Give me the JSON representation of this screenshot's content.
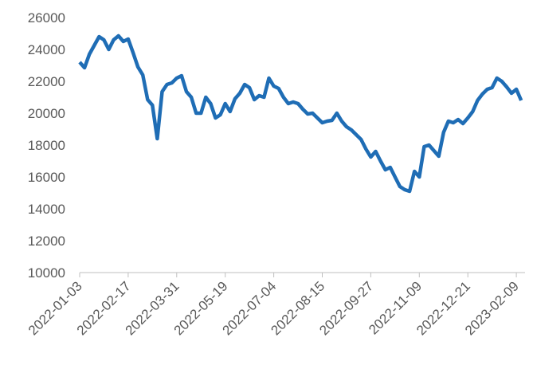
{
  "chart_data": {
    "type": "line",
    "categories": [
      "2022-01-03",
      null,
      null,
      null,
      null,
      null,
      null,
      null,
      null,
      null,
      "2022-02-17",
      null,
      null,
      null,
      null,
      null,
      null,
      null,
      null,
      null,
      "2022-03-31",
      null,
      null,
      null,
      null,
      null,
      null,
      null,
      null,
      null,
      "2022-05-19",
      null,
      null,
      null,
      null,
      null,
      null,
      null,
      null,
      null,
      "2022-07-04",
      null,
      null,
      null,
      null,
      null,
      null,
      null,
      null,
      null,
      "2022-08-15",
      null,
      null,
      null,
      null,
      null,
      null,
      null,
      null,
      null,
      "2022-09-27",
      null,
      null,
      null,
      null,
      null,
      null,
      null,
      null,
      null,
      "2022-11-09",
      null,
      null,
      null,
      null,
      null,
      null,
      null,
      null,
      null,
      "2022-12-21",
      null,
      null,
      null,
      null,
      null,
      null,
      null,
      null,
      null,
      "2023-02-09",
      null
    ],
    "series": [
      {
        "name": null,
        "color": "#1f6db5",
        "values": [
          23200,
          22850,
          23700,
          24250,
          24800,
          24600,
          24000,
          24600,
          24850,
          24500,
          24650,
          23800,
          22900,
          22400,
          20850,
          20500,
          18400,
          21350,
          21800,
          21900,
          22200,
          22350,
          21350,
          21000,
          20000,
          20000,
          21000,
          20600,
          19700,
          19900,
          20600,
          20100,
          20900,
          21250,
          21800,
          21600,
          20850,
          21100,
          21000,
          22200,
          21700,
          21550,
          21000,
          20600,
          20700,
          20600,
          20250,
          19950,
          20000,
          19700,
          19400,
          19500,
          19550,
          20000,
          19500,
          19150,
          18950,
          18650,
          18350,
          17750,
          17250,
          17600,
          17000,
          16450,
          16600,
          16000,
          15400,
          15200,
          15100,
          16350,
          16000,
          17900,
          18000,
          17650,
          17300,
          18800,
          19500,
          19400,
          19600,
          19350,
          19700,
          20100,
          20800,
          21200,
          21500,
          21600,
          22200,
          22000,
          21650,
          21250,
          21500,
          20800
        ]
      }
    ],
    "ylim": [
      10000,
      26000
    ],
    "yticks": [
      10000,
      12000,
      14000,
      16000,
      18000,
      20000,
      22000,
      24000,
      26000
    ],
    "grid": false
  }
}
